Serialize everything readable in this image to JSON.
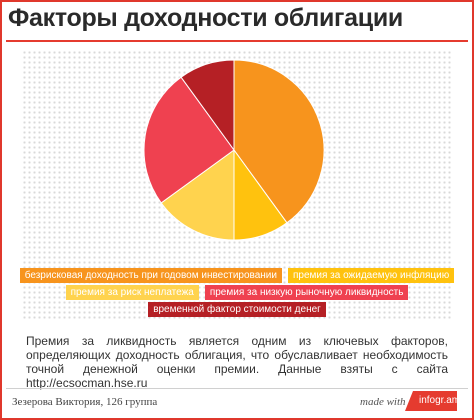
{
  "header": {
    "title": "Факторы доходности облигации"
  },
  "chart_data": {
    "type": "pie",
    "title": "Факторы доходности облигации",
    "slices": [
      {
        "label": "безрисковая доходность при годовом инвестировании",
        "value": 40,
        "color": "#f7941d"
      },
      {
        "label": "премия за ожидаемую инфляцию",
        "value": 10,
        "color": "#ffc20e"
      },
      {
        "label": "премия за риск неплатежа",
        "value": 15,
        "color": "#ffd34e"
      },
      {
        "label": "премия за низкую рыночную ликвидность",
        "value": 25,
        "color": "#ef4150"
      },
      {
        "label": "временной фактор стоимости денег",
        "value": 10,
        "color": "#b52025"
      }
    ],
    "legend_position": "bottom",
    "grid": false
  },
  "description": "Премия за ликвидность является одним из ключевых факторов, определяющих доходность облигация, что обуславливает необходимость точной денежной оценки премии. Данные взяты с сайта http://ecsocman.hse.ru",
  "footer": {
    "author": "Зезерова Виктория, 126 группа",
    "made_with": "made with",
    "brand": "infogr.am",
    "brand_color": "#e53b2f"
  }
}
